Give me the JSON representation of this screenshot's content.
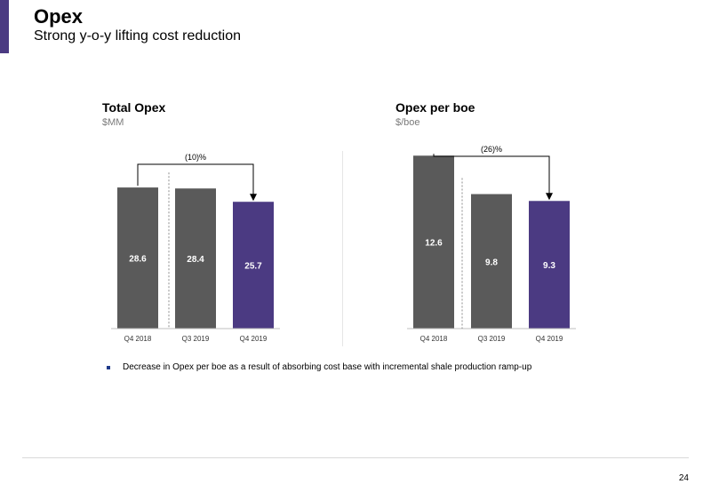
{
  "header": {
    "title": "Opex",
    "subtitle": "Strong y-o-y lifting cost reduction"
  },
  "colors": {
    "accent": "#4b3a82",
    "bar_gray": "#5a5a5a",
    "bar_purple": "#4b3a82"
  },
  "chart_data": [
    {
      "type": "bar",
      "title": "Total Opex",
      "unit": "$MM",
      "categories": [
        "Q4 2018",
        "Q3 2019",
        "Q4 2019"
      ],
      "values": [
        28.6,
        28.4,
        25.7
      ],
      "value_labels": [
        "28.6",
        "28.4",
        "25.7"
      ],
      "highlight_index": 2,
      "ylim": [
        0,
        36
      ],
      "annotation": "(10)%",
      "grid": false
    },
    {
      "type": "bar",
      "title": "Opex per boe",
      "unit": "$/boe",
      "categories": [
        "Q4 2018",
        "Q3 2019",
        "Q4 2019"
      ],
      "values": [
        12.6,
        9.8,
        9.3
      ],
      "value_labels": [
        "12.6",
        "9.8",
        "9.3"
      ],
      "highlight_index": 2,
      "ylim": [
        0,
        13.2
      ],
      "annotation": "(26)%",
      "grid": false
    }
  ],
  "bullets": [
    "Decrease in Opex per boe as a result of absorbing cost base with incremental shale production ramp-up"
  ],
  "page_number": "24"
}
